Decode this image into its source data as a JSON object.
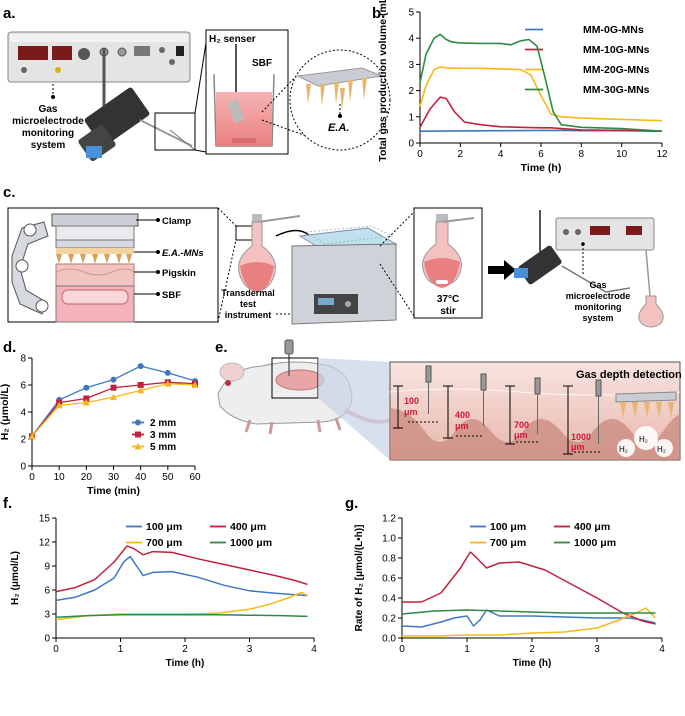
{
  "panel_labels": {
    "a": "a.",
    "b": "b.",
    "c": "c.",
    "d": "d.",
    "e": "e.",
    "f": "f.",
    "g": "g."
  },
  "panel_a": {
    "device_label_1": "Gas",
    "device_label_2": "microelectrode",
    "device_label_3": "monitoring",
    "device_label_4": "system",
    "sensor_label": "H₂ senser",
    "sbf_label": "SBF",
    "ea_label": "E.A."
  },
  "panel_c": {
    "clamp": "Clamp",
    "ea_mns": "E.A.-MNs",
    "pigskin": "Pigskin",
    "sbf": "SBF",
    "instrument_1": "Transdermal",
    "instrument_2": "test",
    "instrument_3": "instrument",
    "temp": "37°C",
    "stir": "stir",
    "system_1": "Gas",
    "system_2": "microelectrode",
    "system_3": "monitoring",
    "system_4": "system"
  },
  "panel_e": {
    "title": "Gas depth detection",
    "depths": [
      {
        "v": "100",
        "u": "μm"
      },
      {
        "v": "400",
        "u": "μm"
      },
      {
        "v": "700",
        "u": "μm"
      },
      {
        "v": "1000",
        "u": "μm"
      }
    ],
    "bubbles": [
      "H₂",
      "H₂",
      "H₂"
    ]
  },
  "colors": {
    "blue": "#3f78c0",
    "red": "#c0223e",
    "yellow": "#f5b81c",
    "green": "#2e8b46"
  },
  "chart_data": [
    {
      "id": "b",
      "type": "line",
      "xlabel": "Time (h)",
      "ylabel": "Total gas production volume (mL)",
      "xlim": [
        0,
        12
      ],
      "ylim": [
        0,
        5
      ],
      "xticks": [
        0,
        2,
        4,
        6,
        8,
        10,
        12
      ],
      "yticks": [
        0,
        1,
        2,
        3,
        4,
        5
      ],
      "legend": "top-right",
      "series": [
        {
          "name": "MM-0G-MNs",
          "color": "#3f78c0",
          "x": [
            0,
            2,
            4,
            6,
            7,
            8,
            10,
            12
          ],
          "y": [
            0.45,
            0.46,
            0.47,
            0.48,
            0.48,
            0.47,
            0.47,
            0.45
          ]
        },
        {
          "name": "MM-10G-MNs",
          "color": "#c0223e",
          "x": [
            0,
            0.5,
            1,
            1.3,
            1.7,
            2.2,
            3,
            4,
            5,
            6,
            6.5,
            7,
            8,
            10,
            12
          ],
          "y": [
            0.6,
            1.3,
            1.75,
            1.7,
            1.2,
            0.8,
            0.7,
            0.62,
            0.6,
            0.58,
            0.58,
            0.55,
            0.5,
            0.48,
            0.45
          ]
        },
        {
          "name": "MM-20G-MNs",
          "color": "#f5b81c",
          "x": [
            0,
            0.3,
            0.7,
            1,
            1.5,
            2,
            3,
            4,
            5,
            5.5,
            6,
            6.5,
            7,
            8,
            10,
            12
          ],
          "y": [
            1.4,
            2.2,
            2.8,
            2.9,
            2.85,
            2.85,
            2.85,
            2.83,
            2.8,
            2.6,
            1.8,
            1.1,
            1.0,
            0.95,
            0.9,
            0.85
          ]
        },
        {
          "name": "MM-30G-MNs",
          "color": "#2e8b46",
          "x": [
            0,
            0.3,
            0.7,
            1,
            1.3,
            1.6,
            2,
            3,
            4,
            4.5,
            5,
            5.4,
            5.8,
            6.2,
            6.6,
            7,
            8,
            10,
            12
          ],
          "y": [
            2.3,
            3.4,
            4.0,
            4.15,
            3.95,
            3.85,
            3.82,
            3.8,
            3.8,
            3.75,
            3.9,
            3.95,
            3.7,
            2.5,
            1.2,
            0.7,
            0.6,
            0.55,
            0.45
          ]
        }
      ]
    },
    {
      "id": "d",
      "type": "line",
      "xlabel": "Time (min)",
      "ylabel": "H₂ (μmol/L)",
      "xlim": [
        0,
        60
      ],
      "ylim": [
        0,
        8
      ],
      "xticks": [
        0,
        10,
        20,
        30,
        40,
        50,
        60
      ],
      "yticks": [
        0,
        2,
        4,
        6,
        8
      ],
      "legend": "bottom-right",
      "series": [
        {
          "name": "2 mm",
          "color": "#3f78c0",
          "marker": "circle",
          "x": [
            0,
            10,
            20,
            30,
            40,
            50,
            60
          ],
          "y": [
            2.2,
            4.9,
            5.8,
            6.4,
            7.4,
            6.9,
            6.3
          ]
        },
        {
          "name": "3 mm",
          "color": "#c0223e",
          "marker": "square",
          "x": [
            0,
            10,
            20,
            30,
            40,
            50,
            60
          ],
          "y": [
            2.2,
            4.7,
            5.0,
            5.8,
            6.0,
            6.2,
            6.1
          ]
        },
        {
          "name": "5 mm",
          "color": "#f5b81c",
          "marker": "triangle",
          "x": [
            0,
            10,
            20,
            30,
            40,
            50,
            60
          ],
          "y": [
            2.2,
            4.5,
            4.7,
            5.1,
            5.6,
            6.1,
            6.0
          ]
        }
      ]
    },
    {
      "id": "f",
      "type": "line",
      "xlabel": "Time (h)",
      "ylabel": "H₂ (μmol/L)",
      "xlim": [
        0,
        4
      ],
      "ylim": [
        0,
        15
      ],
      "xticks": [
        0,
        1,
        2,
        3,
        4
      ],
      "yticks": [
        0,
        3,
        6,
        9,
        12,
        15
      ],
      "legend": "top-right",
      "series": [
        {
          "name": "100 μm",
          "color": "#3f78c0",
          "x": [
            0,
            0.3,
            0.6,
            0.9,
            1.05,
            1.15,
            1.25,
            1.35,
            1.5,
            1.8,
            2.2,
            2.6,
            3,
            3.4,
            3.9
          ],
          "y": [
            4.7,
            5.1,
            6.0,
            7.5,
            9.5,
            10.2,
            9.0,
            7.8,
            8.2,
            8.3,
            7.6,
            6.6,
            5.9,
            5.6,
            5.3
          ]
        },
        {
          "name": "400 μm",
          "color": "#c0223e",
          "x": [
            0,
            0.3,
            0.6,
            0.9,
            1.1,
            1.2,
            1.35,
            1.5,
            1.8,
            2.2,
            2.6,
            3,
            3.4,
            3.7,
            3.9
          ],
          "y": [
            5.8,
            6.3,
            7.3,
            9.5,
            11.5,
            11.2,
            10.4,
            10.8,
            10.7,
            9.9,
            9.2,
            8.5,
            7.8,
            7.2,
            6.7
          ]
        },
        {
          "name": "700 μm",
          "color": "#f5b81c",
          "x": [
            0,
            0.5,
            1,
            1.5,
            2,
            2.5,
            3,
            3.3,
            3.6,
            3.8,
            3.9
          ],
          "y": [
            2.3,
            2.8,
            3.0,
            3.0,
            3.0,
            3.1,
            3.6,
            4.2,
            5.0,
            5.7,
            5.3
          ]
        },
        {
          "name": "1000 μm",
          "color": "#2e8b46",
          "x": [
            0,
            0.5,
            1,
            1.5,
            2,
            2.5,
            3,
            3.5,
            3.9
          ],
          "y": [
            2.6,
            2.8,
            2.9,
            2.9,
            2.9,
            2.9,
            2.85,
            2.8,
            2.7
          ]
        }
      ]
    },
    {
      "id": "g",
      "type": "line",
      "xlabel": "Time (h)",
      "ylabel": "Rate of H₂ [μmol/(L•h)]",
      "xlim": [
        0,
        4
      ],
      "ylim": [
        0,
        1.2
      ],
      "xticks": [
        0,
        1,
        2,
        3,
        4
      ],
      "yticks": [
        0,
        0.2,
        0.4,
        0.6,
        0.8,
        1.0,
        1.2
      ],
      "legend": "top-right",
      "series": [
        {
          "name": "100 μm",
          "color": "#3f78c0",
          "x": [
            0,
            0.3,
            0.6,
            0.8,
            1,
            1.1,
            1.2,
            1.3,
            1.5,
            2,
            2.5,
            3,
            3.5,
            3.7,
            3.9
          ],
          "y": [
            0.12,
            0.11,
            0.16,
            0.2,
            0.22,
            0.12,
            0.18,
            0.28,
            0.22,
            0.22,
            0.21,
            0.2,
            0.2,
            0.18,
            0.15
          ]
        },
        {
          "name": "400 μm",
          "color": "#c0223e",
          "x": [
            0,
            0.3,
            0.6,
            0.9,
            1.05,
            1.15,
            1.3,
            1.5,
            1.8,
            2.2,
            2.6,
            3,
            3.4,
            3.7,
            3.9
          ],
          "y": [
            0.36,
            0.36,
            0.45,
            0.7,
            0.86,
            0.8,
            0.7,
            0.75,
            0.76,
            0.68,
            0.54,
            0.4,
            0.25,
            0.17,
            0.14
          ]
        },
        {
          "name": "700 μm",
          "color": "#f5b81c",
          "x": [
            0,
            0.5,
            1,
            1.5,
            2,
            2.5,
            3,
            3.3,
            3.6,
            3.75,
            3.9
          ],
          "y": [
            0.02,
            0.02,
            0.03,
            0.03,
            0.05,
            0.06,
            0.1,
            0.17,
            0.25,
            0.3,
            0.2
          ]
        },
        {
          "name": "1000 μm",
          "color": "#2e8b46",
          "x": [
            0,
            0.5,
            1,
            1.5,
            2,
            2.5,
            3,
            3.5,
            3.9
          ],
          "y": [
            0.24,
            0.27,
            0.28,
            0.27,
            0.26,
            0.25,
            0.25,
            0.25,
            0.25
          ]
        }
      ]
    }
  ]
}
